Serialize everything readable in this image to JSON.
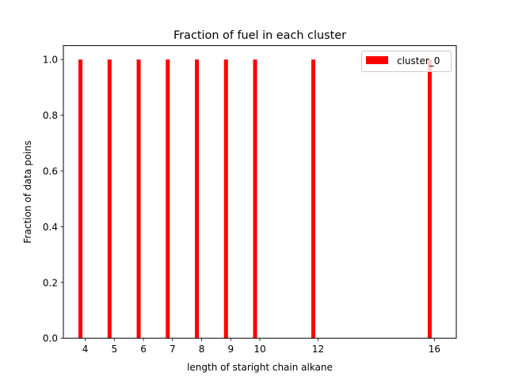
{
  "chart_data": {
    "type": "bar",
    "title": "Fraction of fuel in each cluster",
    "xlabel": "length of staright chain alkane",
    "ylabel": "Fraction of data poins",
    "categories": [
      "4",
      "5",
      "6",
      "7",
      "8",
      "9",
      "10",
      "12",
      "16"
    ],
    "series": [
      {
        "name": "cluster_0",
        "color": "#ff0000",
        "values": [
          1.0,
          1.0,
          1.0,
          1.0,
          1.0,
          1.0,
          1.0,
          1.0,
          1.0
        ]
      }
    ],
    "ylim": [
      0.0,
      1.05
    ],
    "yticks": [
      "0.0",
      "0.2",
      "0.4",
      "0.6",
      "0.8",
      "1.0"
    ],
    "legend_position": "top-right",
    "grid": false
  }
}
